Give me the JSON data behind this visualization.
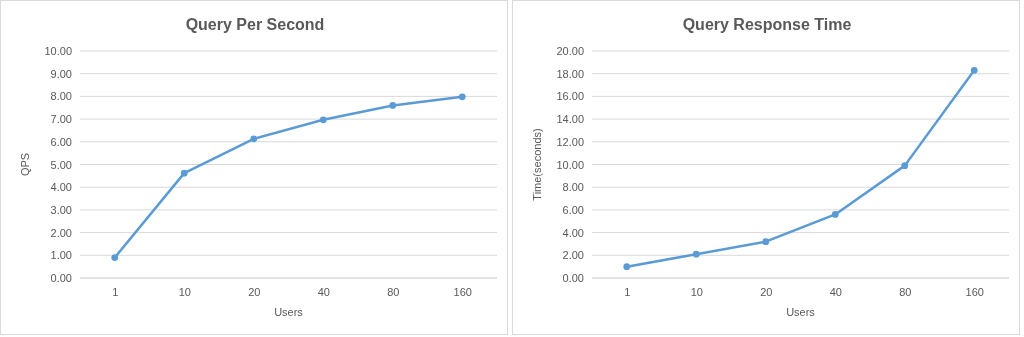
{
  "chart_data": [
    {
      "type": "line",
      "title": "Query Per Second",
      "xlabel": "Users",
      "ylabel": "QPS",
      "categories": [
        "1",
        "10",
        "20",
        "40",
        "80",
        "160"
      ],
      "series": [
        {
          "color": "#5b9bd5",
          "values": [
            0.9,
            4.62,
            6.13,
            6.97,
            7.6,
            7.98
          ]
        }
      ],
      "ylim": [
        0,
        10
      ],
      "yticks": [
        {
          "value": 0,
          "label": "0.00"
        },
        {
          "value": 1,
          "label": "1.00"
        },
        {
          "value": 2,
          "label": "2.00"
        },
        {
          "value": 3,
          "label": "3.00"
        },
        {
          "value": 4,
          "label": "4.00"
        },
        {
          "value": 5,
          "label": "5.00"
        },
        {
          "value": 6,
          "label": "6.00"
        },
        {
          "value": 7,
          "label": "7.00"
        },
        {
          "value": 8,
          "label": "8.00"
        },
        {
          "value": 9,
          "label": "9.00"
        },
        {
          "value": 10,
          "label": "10.00"
        }
      ],
      "grid": "y",
      "marker": "circle",
      "line_style": "solid"
    },
    {
      "type": "line",
      "title": "Query Response Time",
      "xlabel": "Users",
      "ylabel": "Time(seconds)",
      "categories": [
        "1",
        "10",
        "20",
        "40",
        "80",
        "160"
      ],
      "series": [
        {
          "color": "#5b9bd5",
          "values": [
            1.0,
            2.1,
            3.2,
            5.6,
            9.9,
            18.3
          ]
        }
      ],
      "ylim": [
        0,
        20
      ],
      "yticks": [
        {
          "value": 0,
          "label": "0.00"
        },
        {
          "value": 2,
          "label": "2.00"
        },
        {
          "value": 4,
          "label": "4.00"
        },
        {
          "value": 6,
          "label": "6.00"
        },
        {
          "value": 8,
          "label": "8.00"
        },
        {
          "value": 10,
          "label": "10.00"
        },
        {
          "value": 12,
          "label": "12.00"
        },
        {
          "value": 14,
          "label": "14.00"
        },
        {
          "value": 16,
          "label": "16.00"
        },
        {
          "value": 18,
          "label": "18.00"
        },
        {
          "value": 20,
          "label": "20.00"
        }
      ],
      "grid": "y",
      "marker": "circle",
      "line_style": "solid"
    }
  ]
}
